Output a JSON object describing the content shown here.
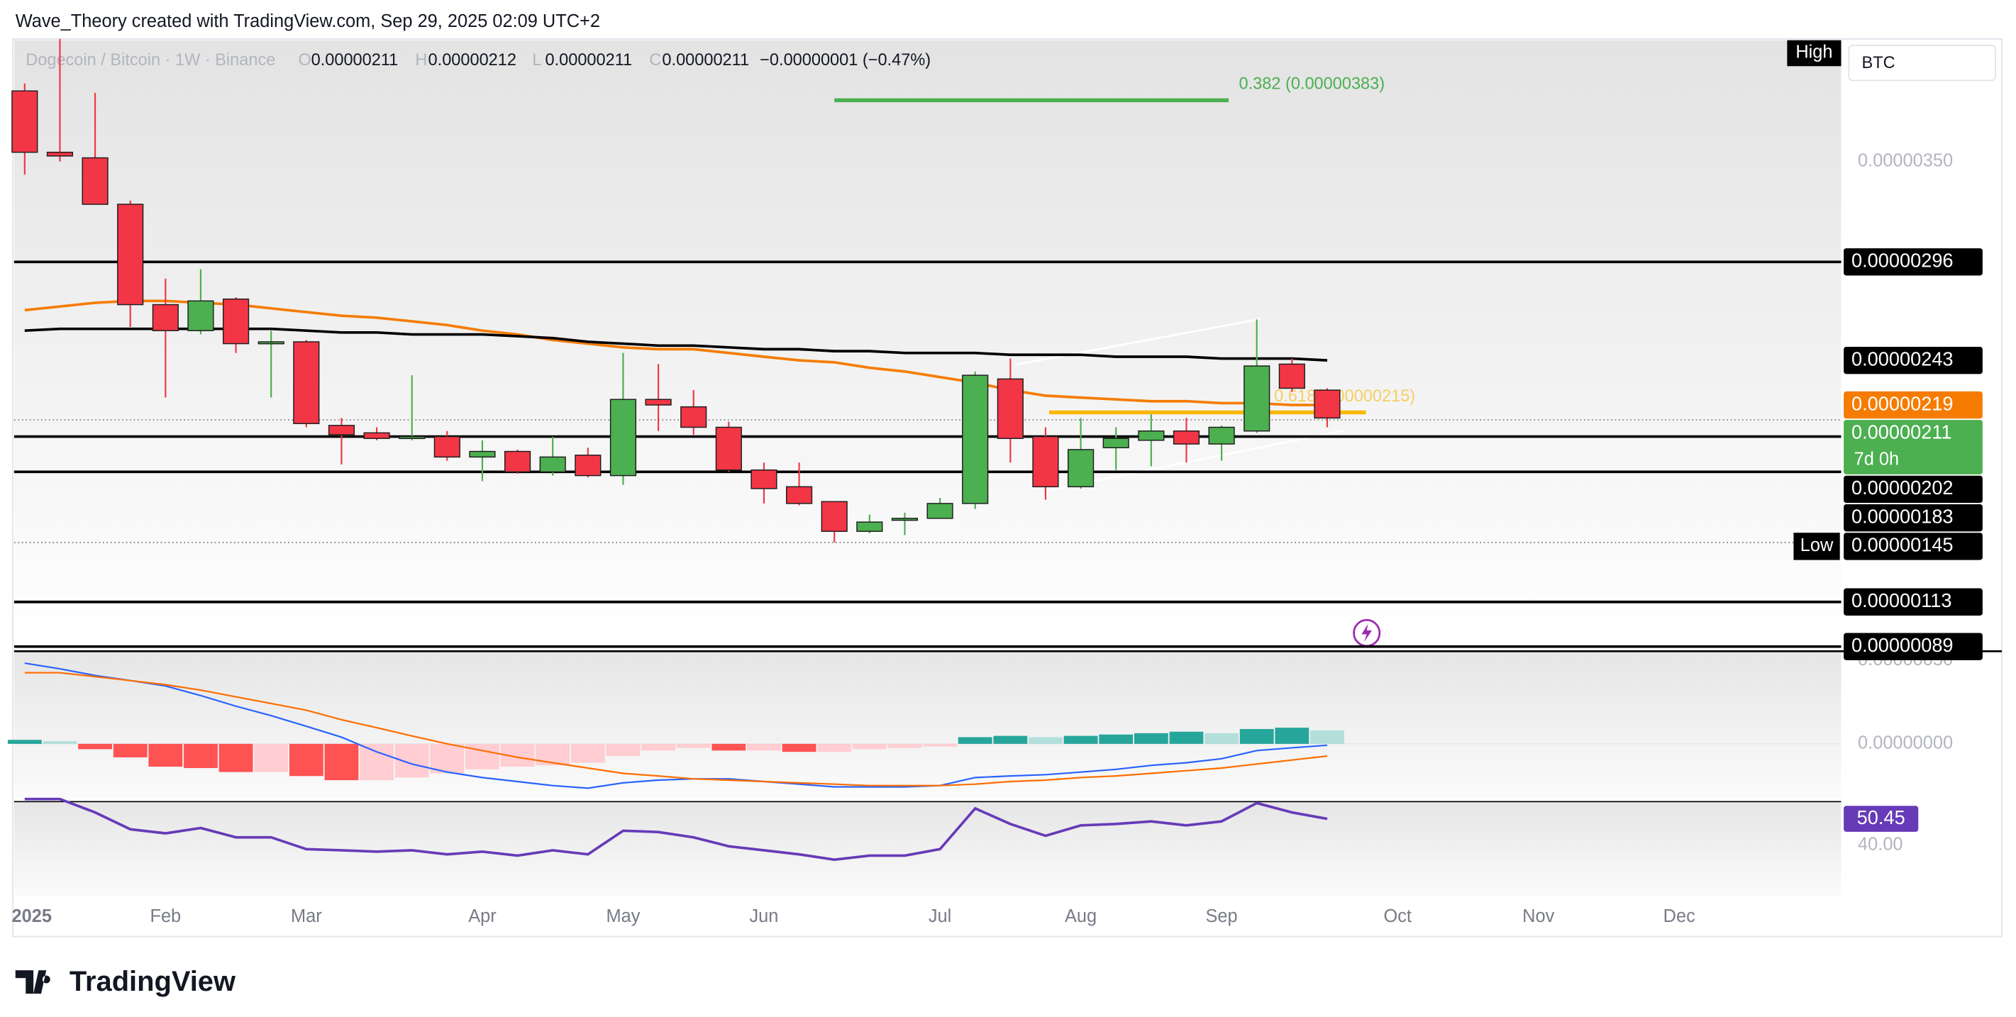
{
  "header": {
    "text": "Wave_Theory created with TradingView.com, Sep 29, 2025 02:09 UTC+2"
  },
  "brand": "TradingView",
  "chart_data": {
    "type": "candlestick",
    "title": "Dogecoin / Bitcoin · 1W · Binance",
    "legend": [
      {
        "key": "O",
        "text": "0.00000211"
      },
      {
        "key": "H",
        "text": "0.00000212"
      },
      {
        "key": "L",
        "text": "0.00000211"
      },
      {
        "key": "C",
        "text": "0.00000211"
      }
    ],
    "change": "−0.00000001 (−0.47%)",
    "currency": "BTC",
    "high_tag": "High",
    "up_color": "#4caf50",
    "down_color": "#f23645",
    "open": [
      3.88e-06,
      3.55e-06,
      3.52e-06,
      3.27e-06,
      2.73e-06,
      2.59e-06,
      2.76e-06,
      2.52e-06,
      2.53e-06,
      2.08e-06,
      2.04e-06,
      2.01e-06,
      2.02e-06,
      1.91e-06,
      1.94e-06,
      1.83e-06,
      1.92e-06,
      1.81e-06,
      2.22e-06,
      2.18e-06,
      2.07e-06,
      1.84e-06,
      1.75e-06,
      1.67e-06,
      1.51e-06,
      1.57e-06,
      1.58e-06,
      1.66e-06,
      2.33e-06,
      2.02e-06,
      1.75e-06,
      1.96e-06,
      2e-06,
      2.05e-06,
      1.98e-06,
      2.05e-06,
      2.41e-06,
      2.27e-06
    ],
    "high": [
      3.92e-06,
      4.16e-06,
      3.87e-06,
      3.29e-06,
      2.87e-06,
      2.92e-06,
      2.77e-06,
      2.59e-06,
      2.54e-06,
      2.12e-06,
      2.07e-06,
      2.35e-06,
      2.05e-06,
      2e-06,
      1.95e-06,
      2.02e-06,
      1.96e-06,
      2.47e-06,
      2.41e-06,
      2.27e-06,
      2.1e-06,
      1.88e-06,
      1.88e-06,
      1.67e-06,
      1.6e-06,
      1.61e-06,
      1.69e-06,
      2.37e-06,
      2.44e-06,
      2.07e-06,
      2.12e-06,
      2.07e-06,
      2.14e-06,
      2.12e-06,
      2.08e-06,
      2.65e-06,
      2.44e-06,
      2.28e-06
    ],
    "low": [
      3.43e-06,
      3.5e-06,
      3.27e-06,
      2.61e-06,
      2.23e-06,
      2.57e-06,
      2.47e-06,
      2.23e-06,
      2.07e-06,
      1.87e-06,
      2e-06,
      2e-06,
      1.89e-06,
      1.78e-06,
      1.82e-06,
      1.81e-06,
      1.8e-06,
      1.76e-06,
      2.05e-06,
      2.03e-06,
      1.83e-06,
      1.66e-06,
      1.65e-06,
      1.45e-06,
      1.5e-06,
      1.49e-06,
      1.58e-06,
      1.63e-06,
      1.88e-06,
      1.68e-06,
      1.74e-06,
      1.84e-06,
      1.86e-06,
      1.88e-06,
      1.89e-06,
      2.04e-06,
      2.26e-06,
      2.07e-06
    ],
    "close": [
      3.55e-06,
      3.53e-06,
      3.27e-06,
      2.73e-06,
      2.59e-06,
      2.75e-06,
      2.52e-06,
      2.53e-06,
      2.09e-06,
      2.03e-06,
      2.01e-06,
      2.02e-06,
      1.91e-06,
      1.94e-06,
      1.83e-06,
      1.91e-06,
      1.81e-06,
      2.22e-06,
      2.19e-06,
      2.07e-06,
      1.84e-06,
      1.74e-06,
      1.66e-06,
      1.51e-06,
      1.56e-06,
      1.58e-06,
      1.66e-06,
      2.35e-06,
      2.01e-06,
      1.75e-06,
      1.95e-06,
      2.01e-06,
      2.05e-06,
      1.98e-06,
      2.07e-06,
      2.4e-06,
      2.28e-06,
      2.12e-06
    ],
    "moving_averages": [
      {
        "color": "#f57c00",
        "values": [
          2.7e-06,
          2.72e-06,
          2.74e-06,
          2.75e-06,
          2.75e-06,
          2.74e-06,
          2.73e-06,
          2.71e-06,
          2.69e-06,
          2.67e-06,
          2.66e-06,
          2.64e-06,
          2.62e-06,
          2.59e-06,
          2.57e-06,
          2.54e-06,
          2.52e-06,
          2.5e-06,
          2.49e-06,
          2.49e-06,
          2.47e-06,
          2.45e-06,
          2.43e-06,
          2.42e-06,
          2.39e-06,
          2.37e-06,
          2.34e-06,
          2.31e-06,
          2.27e-06,
          2.24e-06,
          2.23e-06,
          2.22e-06,
          2.21e-06,
          2.21e-06,
          2.2e-06,
          2.2e-06,
          2.19e-06,
          2.19e-06
        ]
      },
      {
        "color": "#000000",
        "values": [
          2.59e-06,
          2.6e-06,
          2.6e-06,
          2.6e-06,
          2.6e-06,
          2.6e-06,
          2.6e-06,
          2.6e-06,
          2.59e-06,
          2.58e-06,
          2.58e-06,
          2.57e-06,
          2.57e-06,
          2.57e-06,
          2.56e-06,
          2.55e-06,
          2.53e-06,
          2.52e-06,
          2.51e-06,
          2.51e-06,
          2.5e-06,
          2.49e-06,
          2.49e-06,
          2.48e-06,
          2.48e-06,
          2.47e-06,
          2.47e-06,
          2.47e-06,
          2.46e-06,
          2.46e-06,
          2.46e-06,
          2.45e-06,
          2.45e-06,
          2.45e-06,
          2.44e-06,
          2.44e-06,
          2.44e-06,
          2.43e-06
        ]
      }
    ],
    "ylim": [
      8.65e-07,
      4.16e-06
    ],
    "yticks": [
      {
        "value": 3.5e-06,
        "label": "0.00000350"
      }
    ],
    "xlim": [
      -0.3,
      51.6
    ],
    "xticks": [
      {
        "value": 0.2,
        "label": "2025"
      },
      {
        "value": 4,
        "label": "Feb"
      },
      {
        "value": 8,
        "label": "Mar"
      },
      {
        "value": 13,
        "label": "Apr"
      },
      {
        "value": 17,
        "label": "May"
      },
      {
        "value": 21,
        "label": "Jun"
      },
      {
        "value": 26,
        "label": "Jul"
      },
      {
        "value": 30,
        "label": "Aug"
      },
      {
        "value": 34,
        "label": "Sep"
      },
      {
        "value": 39,
        "label": "Oct"
      },
      {
        "value": 43,
        "label": "Nov"
      },
      {
        "value": 47,
        "label": "Dec"
      }
    ],
    "levels": [
      {
        "value": 2.96e-06,
        "style": "solid"
      },
      {
        "value": 2.11e-06,
        "style": "dotted"
      },
      {
        "value": 2.02e-06,
        "style": "solid"
      },
      {
        "value": 1.83e-06,
        "style": "solid"
      },
      {
        "value": 1.45e-06,
        "style": "dotted"
      },
      {
        "value": 1.13e-06,
        "style": "solid"
      },
      {
        "value": 8.9e-07,
        "style": "solid"
      }
    ],
    "price_labels": [
      {
        "value": 2.96e-06,
        "label": "0.00000296",
        "color": "#000000"
      },
      {
        "value": 2.43e-06,
        "label": "0.00000243",
        "color": "#000000"
      },
      {
        "value": 2.19e-06,
        "label": "0.00000219",
        "color": "#f57c00"
      },
      {
        "value": 2.11e-06,
        "label": "0.00000211",
        "color": "#4caf50",
        "countdown": "7d 0h"
      },
      {
        "value": 2.02e-06,
        "label": "0.00000202",
        "color": "#000000"
      },
      {
        "value": 1.83e-06,
        "label": "0.00000183",
        "color": "#000000"
      },
      {
        "value": 1.45e-06,
        "label": "0.00000145",
        "color": "#000000",
        "tag": "Low"
      },
      {
        "value": 1.13e-06,
        "label": "0.00000113",
        "color": "#000000"
      },
      {
        "value": 8.9e-07,
        "label": "0.00000089",
        "color": "#000000"
      }
    ],
    "fib_levels": [
      {
        "value": 3.83e-06,
        "label": "0.382 (0.00000383)",
        "color": "#4caf50",
        "x_range": [
          23,
          34.2
        ]
      },
      {
        "value": 2.15e-06,
        "label": "0.618(0.00000215)",
        "color": "#f9b800",
        "x_range": [
          29.1,
          38.1
        ]
      }
    ],
    "macd": {
      "ylim": [
        -3.39e-07,
        5.48e-07
      ],
      "yticks": [
        {
          "value": 5e-07,
          "label": "0.00000050"
        },
        {
          "value": 0,
          "label": "0.00000000"
        }
      ],
      "histogram_colors": {
        "up_rising": "#26a69a",
        "up_falling": "#b2dfdb",
        "down_falling": "#ff5252",
        "down_rising": "#ffcdd2"
      },
      "histogram": [
        2.4e-08,
        1.6e-08,
        -3.2e-08,
        -8.1e-08,
        -1.37e-07,
        -1.45e-07,
        -1.69e-07,
        -1.69e-07,
        -1.93e-07,
        -2.18e-07,
        -2.18e-07,
        -2.02e-07,
        -1.77e-07,
        -1.53e-07,
        -1.37e-07,
        -1.29e-07,
        -1.13e-07,
        -7.3e-08,
        -4e-08,
        -2.4e-08,
        -4e-08,
        -4e-08,
        -4.8e-08,
        -4.8e-08,
        -3.2e-08,
        -2.4e-08,
        -1.6e-08,
        4e-08,
        4.8e-08,
        4e-08,
        4.8e-08,
        5.6e-08,
        6.4e-08,
        7.3e-08,
        6.4e-08,
        8.9e-08,
        9.7e-08,
        8.1e-08
      ],
      "lines": [
        {
          "color": "#2962ff",
          "values": [
            4.84e-07,
            4.5e-07,
            4.1e-07,
            3.8e-07,
            3.47e-07,
            2.9e-07,
            2.26e-07,
            1.69e-07,
            1.05e-07,
            4e-08,
            -4.8e-08,
            -1.21e-07,
            -1.69e-07,
            -2.02e-07,
            -2.26e-07,
            -2.5e-07,
            -2.66e-07,
            -2.34e-07,
            -2.18e-07,
            -2.1e-07,
            -2.1e-07,
            -2.26e-07,
            -2.42e-07,
            -2.58e-07,
            -2.58e-07,
            -2.58e-07,
            -2.5e-07,
            -2.02e-07,
            -1.93e-07,
            -1.85e-07,
            -1.69e-07,
            -1.53e-07,
            -1.29e-07,
            -1.13e-07,
            -8.9e-08,
            -4e-08,
            -2.4e-08,
            -8e-09
          ]
        },
        {
          "color": "#ff6d00",
          "values": [
            4.27e-07,
            4.27e-07,
            4.03e-07,
            3.79e-07,
            3.55e-07,
            3.22e-07,
            2.82e-07,
            2.42e-07,
            2.02e-07,
            1.45e-07,
            9.7e-08,
            4.8e-08,
            0,
            -4e-08,
            -8.1e-08,
            -1.13e-07,
            -1.45e-07,
            -1.77e-07,
            -1.93e-07,
            -2.1e-07,
            -2.18e-07,
            -2.26e-07,
            -2.34e-07,
            -2.42e-07,
            -2.5e-07,
            -2.5e-07,
            -2.5e-07,
            -2.42e-07,
            -2.26e-07,
            -2.18e-07,
            -2.02e-07,
            -1.93e-07,
            -1.77e-07,
            -1.61e-07,
            -1.45e-07,
            -1.21e-07,
            -9.7e-08,
            -7.3e-08
          ]
        }
      ]
    },
    "rsi": {
      "color": "#673ab7",
      "ylim": [
        19.6,
        58.3
      ],
      "yticks": [
        {
          "value": 40,
          "label": "40.00"
        }
      ],
      "last": 50.45,
      "values": [
        58.3,
        58.3,
        53,
        46.3,
        44.7,
        46.8,
        43.1,
        43.1,
        38.4,
        37.9,
        37.4,
        37.9,
        36.3,
        37.4,
        35.8,
        37.9,
        36.3,
        45.7,
        45.2,
        43.1,
        39.5,
        37.9,
        36.3,
        34.2,
        35.8,
        35.8,
        38.4,
        54.6,
        48.4,
        43.7,
        47.8,
        48.4,
        49.4,
        47.8,
        49.4,
        56.7,
        53,
        50.45
      ]
    }
  }
}
